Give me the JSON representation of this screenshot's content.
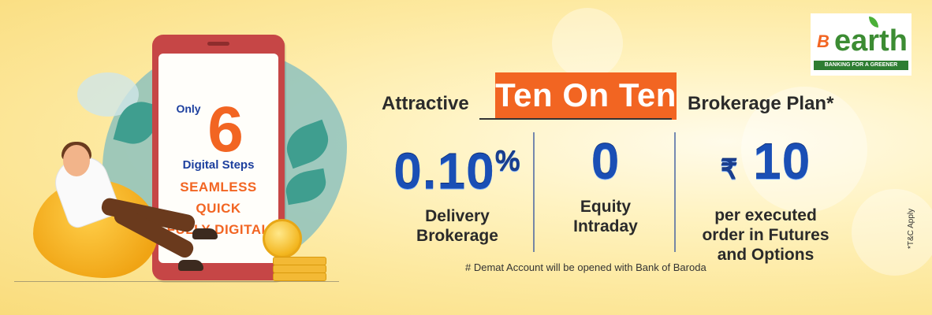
{
  "logo": {
    "mark": "B",
    "name": "earth",
    "tagline": "BANKING FOR A GREENER PLANET"
  },
  "phone": {
    "only": "Only",
    "number": "6",
    "digital_steps": "Digital Steps",
    "features": [
      "SEAMLESS",
      "QUICK",
      "FULLY DIGITAL"
    ]
  },
  "headline": {
    "left": "Attractive",
    "highlight": "Ten On Ten",
    "right": "Brokerage Plan*"
  },
  "offers": [
    {
      "value": "0.10",
      "suffix": "%",
      "prefix": "",
      "desc_line1": "Delivery",
      "desc_line2": "Brokerage",
      "desc_line3": ""
    },
    {
      "value": "0",
      "suffix": "",
      "prefix": "",
      "desc_line1": "Equity",
      "desc_line2": "Intraday",
      "desc_line3": ""
    },
    {
      "value": "10",
      "suffix": "",
      "prefix": "₹",
      "desc_line1": "per executed",
      "desc_line2": "order in Futures",
      "desc_line3": "and Options"
    }
  ],
  "footnote": "# Demat Account will be opened with Bank of Baroda",
  "disclaimer": "*T&C Apply",
  "colors": {
    "accent": "#f26522",
    "blue": "#1a4fb5",
    "green": "#3c8c33"
  }
}
